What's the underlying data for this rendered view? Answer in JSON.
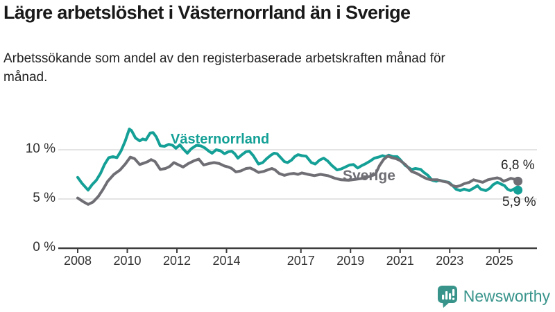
{
  "header": {
    "title": "Lägre arbetslöshet i Västernorrland än i Sverige",
    "subtitle": "Arbetssökande som andel av den registerbaserade arbetskraften månad för månad."
  },
  "chart_data": {
    "type": "line",
    "title": "Lägre arbetslöshet i Västernorrland än i Sverige",
    "subtitle": "Arbetssökande som andel av den registerbaserade arbetskraften månad för månad.",
    "x_axis": {
      "unit": "year",
      "ticks": [
        2008,
        2010,
        2012,
        2014,
        2017,
        2019,
        2021,
        2023,
        2025
      ],
      "range": [
        2007.9,
        2026.2
      ]
    },
    "y_axis": {
      "unit": "%",
      "ticks": [
        0,
        5,
        10
      ],
      "tick_labels": [
        "0 %",
        "5 %",
        "10 %"
      ],
      "range": [
        0,
        13.4
      ],
      "grid": true
    },
    "grid_color": "#dcdcdc",
    "axis_color": "#3d3d3d",
    "legend_position": "inline-labels",
    "series": [
      {
        "name": "Västernorrland",
        "color": "#14a096",
        "end_value": 5.9,
        "end_label": "5,9 %",
        "points": [
          [
            2008.0,
            7.2
          ],
          [
            2008.17,
            6.6
          ],
          [
            2008.42,
            5.9
          ],
          [
            2008.58,
            6.45
          ],
          [
            2008.75,
            6.9
          ],
          [
            2008.92,
            7.6
          ],
          [
            2009.08,
            8.5
          ],
          [
            2009.25,
            9.2
          ],
          [
            2009.42,
            9.3
          ],
          [
            2009.58,
            9.2
          ],
          [
            2009.75,
            9.9
          ],
          [
            2009.92,
            10.9
          ],
          [
            2010.08,
            12.1
          ],
          [
            2010.17,
            11.95
          ],
          [
            2010.33,
            11.2
          ],
          [
            2010.5,
            10.9
          ],
          [
            2010.62,
            11.1
          ],
          [
            2010.75,
            11.0
          ],
          [
            2010.92,
            11.7
          ],
          [
            2011.04,
            11.75
          ],
          [
            2011.17,
            11.3
          ],
          [
            2011.33,
            10.4
          ],
          [
            2011.5,
            10.35
          ],
          [
            2011.67,
            10.55
          ],
          [
            2011.83,
            10.45
          ],
          [
            2011.96,
            10.15
          ],
          [
            2012.12,
            10.5
          ],
          [
            2012.25,
            10.1
          ],
          [
            2012.42,
            9.65
          ],
          [
            2012.58,
            10.1
          ],
          [
            2012.79,
            10.45
          ],
          [
            2012.96,
            10.4
          ],
          [
            2013.12,
            10.2
          ],
          [
            2013.29,
            9.85
          ],
          [
            2013.42,
            9.65
          ],
          [
            2013.58,
            10.0
          ],
          [
            2013.75,
            9.9
          ],
          [
            2013.92,
            9.6
          ],
          [
            2014.08,
            9.8
          ],
          [
            2014.21,
            9.85
          ],
          [
            2014.33,
            9.6
          ],
          [
            2014.46,
            9.15
          ],
          [
            2014.62,
            9.5
          ],
          [
            2014.79,
            9.8
          ],
          [
            2014.92,
            9.85
          ],
          [
            2015.08,
            9.4
          ],
          [
            2015.29,
            8.55
          ],
          [
            2015.46,
            8.7
          ],
          [
            2015.62,
            9.1
          ],
          [
            2015.79,
            9.45
          ],
          [
            2015.92,
            9.65
          ],
          [
            2016.04,
            9.6
          ],
          [
            2016.17,
            9.25
          ],
          [
            2016.33,
            8.8
          ],
          [
            2016.46,
            8.7
          ],
          [
            2016.62,
            8.95
          ],
          [
            2016.75,
            9.3
          ],
          [
            2016.88,
            9.5
          ],
          [
            2017.04,
            9.4
          ],
          [
            2017.21,
            9.35
          ],
          [
            2017.42,
            8.7
          ],
          [
            2017.58,
            8.55
          ],
          [
            2017.75,
            8.95
          ],
          [
            2017.92,
            9.15
          ],
          [
            2018.08,
            8.85
          ],
          [
            2018.25,
            8.4
          ],
          [
            2018.46,
            7.95
          ],
          [
            2018.62,
            8.05
          ],
          [
            2018.79,
            8.25
          ],
          [
            2018.96,
            8.45
          ],
          [
            2019.12,
            8.5
          ],
          [
            2019.29,
            8.15
          ],
          [
            2019.46,
            8.4
          ],
          [
            2019.62,
            8.6
          ],
          [
            2019.79,
            8.85
          ],
          [
            2019.96,
            9.15
          ],
          [
            2020.12,
            9.25
          ],
          [
            2020.29,
            9.4
          ],
          [
            2020.42,
            9.3
          ],
          [
            2020.54,
            9.45
          ],
          [
            2020.71,
            9.3
          ],
          [
            2020.88,
            9.3
          ],
          [
            2021.0,
            9.0
          ],
          [
            2021.21,
            8.4
          ],
          [
            2021.46,
            8.0
          ],
          [
            2021.62,
            8.1
          ],
          [
            2021.83,
            8.0
          ],
          [
            2021.96,
            7.7
          ],
          [
            2022.12,
            7.4
          ],
          [
            2022.29,
            6.9
          ],
          [
            2022.46,
            6.8
          ],
          [
            2022.58,
            6.9
          ],
          [
            2022.75,
            6.8
          ],
          [
            2022.96,
            6.7
          ],
          [
            2023.12,
            6.35
          ],
          [
            2023.25,
            6.0
          ],
          [
            2023.42,
            5.85
          ],
          [
            2023.58,
            6.0
          ],
          [
            2023.79,
            5.85
          ],
          [
            2023.96,
            6.1
          ],
          [
            2024.12,
            6.35
          ],
          [
            2024.25,
            6.0
          ],
          [
            2024.46,
            5.85
          ],
          [
            2024.62,
            6.1
          ],
          [
            2024.75,
            6.45
          ],
          [
            2024.92,
            6.7
          ],
          [
            2025.04,
            6.55
          ],
          [
            2025.21,
            6.35
          ],
          [
            2025.33,
            6.0
          ],
          [
            2025.46,
            5.85
          ],
          [
            2025.62,
            6.05
          ],
          [
            2025.75,
            5.9
          ]
        ]
      },
      {
        "name": "Sverige",
        "color": "#6e6e74",
        "end_value": 6.8,
        "end_label": "6,8 %",
        "points": [
          [
            2008.0,
            5.1
          ],
          [
            2008.21,
            4.75
          ],
          [
            2008.42,
            4.45
          ],
          [
            2008.62,
            4.7
          ],
          [
            2008.83,
            5.25
          ],
          [
            2009.0,
            5.9
          ],
          [
            2009.21,
            6.8
          ],
          [
            2009.46,
            7.5
          ],
          [
            2009.71,
            7.95
          ],
          [
            2009.92,
            8.55
          ],
          [
            2010.12,
            9.25
          ],
          [
            2010.29,
            9.1
          ],
          [
            2010.5,
            8.5
          ],
          [
            2010.67,
            8.65
          ],
          [
            2010.83,
            8.8
          ],
          [
            2010.96,
            9.0
          ],
          [
            2011.12,
            8.8
          ],
          [
            2011.33,
            8.0
          ],
          [
            2011.54,
            8.1
          ],
          [
            2011.71,
            8.3
          ],
          [
            2011.88,
            8.7
          ],
          [
            2012.08,
            8.45
          ],
          [
            2012.25,
            8.25
          ],
          [
            2012.46,
            8.6
          ],
          [
            2012.71,
            8.9
          ],
          [
            2012.88,
            9.05
          ],
          [
            2013.08,
            8.45
          ],
          [
            2013.29,
            8.6
          ],
          [
            2013.5,
            8.7
          ],
          [
            2013.71,
            8.6
          ],
          [
            2013.92,
            8.35
          ],
          [
            2014.08,
            8.25
          ],
          [
            2014.21,
            8.1
          ],
          [
            2014.38,
            7.75
          ],
          [
            2014.58,
            7.85
          ],
          [
            2014.79,
            8.1
          ],
          [
            2014.96,
            8.15
          ],
          [
            2015.12,
            7.95
          ],
          [
            2015.29,
            7.7
          ],
          [
            2015.5,
            7.8
          ],
          [
            2015.71,
            8.0
          ],
          [
            2015.83,
            8.1
          ],
          [
            2015.96,
            7.95
          ],
          [
            2016.12,
            7.6
          ],
          [
            2016.33,
            7.4
          ],
          [
            2016.54,
            7.55
          ],
          [
            2016.71,
            7.6
          ],
          [
            2016.88,
            7.5
          ],
          [
            2017.04,
            7.65
          ],
          [
            2017.29,
            7.5
          ],
          [
            2017.54,
            7.37
          ],
          [
            2017.79,
            7.5
          ],
          [
            2018.08,
            7.37
          ],
          [
            2018.38,
            7.1
          ],
          [
            2018.62,
            6.95
          ],
          [
            2018.92,
            6.9
          ],
          [
            2019.21,
            7.0
          ],
          [
            2019.5,
            7.1
          ],
          [
            2019.79,
            7.3
          ],
          [
            2020.0,
            7.5
          ],
          [
            2020.17,
            8.4
          ],
          [
            2020.33,
            9.0
          ],
          [
            2020.5,
            9.35
          ],
          [
            2020.67,
            9.2
          ],
          [
            2020.83,
            9.1
          ],
          [
            2021.0,
            8.9
          ],
          [
            2021.21,
            8.5
          ],
          [
            2021.46,
            7.8
          ],
          [
            2021.67,
            7.6
          ],
          [
            2021.88,
            7.3
          ],
          [
            2022.08,
            7.05
          ],
          [
            2022.25,
            6.95
          ],
          [
            2022.5,
            6.95
          ],
          [
            2022.71,
            6.8
          ],
          [
            2022.92,
            6.7
          ],
          [
            2023.08,
            6.4
          ],
          [
            2023.25,
            6.25
          ],
          [
            2023.42,
            6.35
          ],
          [
            2023.58,
            6.55
          ],
          [
            2023.79,
            6.7
          ],
          [
            2023.96,
            6.95
          ],
          [
            2024.17,
            6.8
          ],
          [
            2024.33,
            6.7
          ],
          [
            2024.54,
            6.95
          ],
          [
            2024.71,
            7.05
          ],
          [
            2024.92,
            7.15
          ],
          [
            2025.04,
            7.05
          ],
          [
            2025.17,
            6.8
          ],
          [
            2025.33,
            6.95
          ],
          [
            2025.46,
            7.1
          ],
          [
            2025.62,
            7.0
          ],
          [
            2025.75,
            6.8
          ]
        ]
      }
    ]
  },
  "footer": {
    "brand": "Newsworthy",
    "brand_color": "#38948b",
    "brand_icon": "bar-chart-speech-bubble"
  }
}
